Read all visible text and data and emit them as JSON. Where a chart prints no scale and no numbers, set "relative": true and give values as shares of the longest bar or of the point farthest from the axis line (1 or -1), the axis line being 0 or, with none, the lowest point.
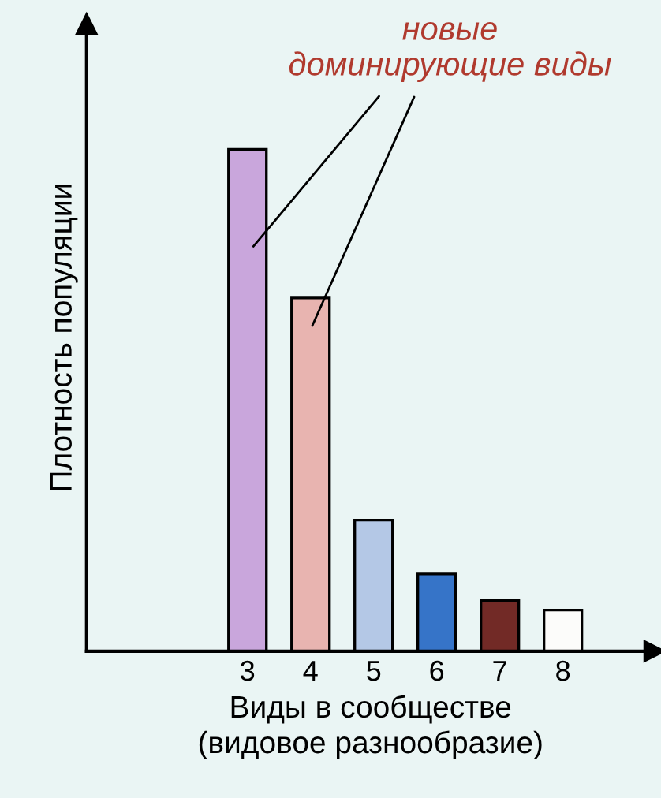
{
  "chart_data": {
    "type": "bar",
    "relative": true,
    "xlabel": "Виды в сообществе\n(видовое разнообразие)",
    "ylabel": "Плотность популяции",
    "annotations": [
      "новые\nдоминирующие виды"
    ],
    "categories": [
      null,
      null,
      "3",
      "4",
      "5",
      "6",
      "7",
      "8"
    ],
    "values": [
      null,
      null,
      1,
      0.704,
      0.261,
      0.154,
      0.101,
      0.082
    ],
    "colors": [
      "#ffffff",
      "#ffffff",
      "#c9a6dc",
      "#e8b4b0",
      "#b4c8e6",
      "#3674c8",
      "#722a26",
      "#fcfcfa"
    ],
    "grid": false,
    "legend": false
  }
}
